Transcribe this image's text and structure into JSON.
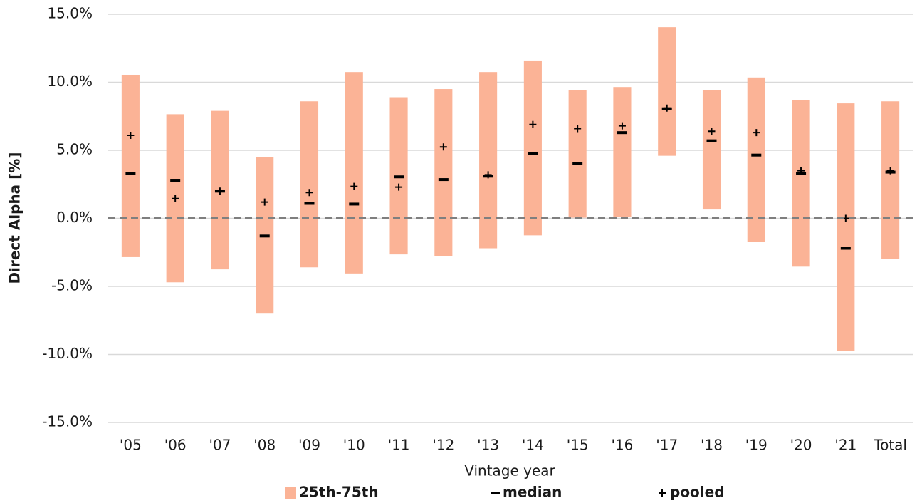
{
  "chart_data": {
    "type": "range_bar",
    "y_label": "Direct Alpha [%]",
    "x_label": "Vintage year",
    "categories": [
      "'05",
      "'06",
      "'07",
      "'08",
      "'09",
      "'10",
      "'11",
      "'12",
      "'13",
      "'14",
      "'15",
      "'16",
      "'17",
      "'18",
      "'19",
      "'20",
      "'21",
      "Total"
    ],
    "series": [
      {
        "name": "25th-75th",
        "color": "#fbb396",
        "low": [
          -2.85,
          -4.7,
          -3.75,
          -7.0,
          -3.6,
          -4.05,
          -2.65,
          -2.75,
          -2.2,
          -1.25,
          0.05,
          0.1,
          4.6,
          0.65,
          -1.75,
          -3.55,
          -9.75,
          -3.0
        ],
        "high": [
          10.55,
          7.65,
          7.9,
          4.5,
          8.6,
          10.75,
          8.9,
          9.5,
          10.75,
          11.6,
          9.45,
          9.65,
          14.05,
          9.4,
          10.35,
          8.7,
          8.45,
          8.6
        ]
      },
      {
        "name": "median",
        "color": "#000000",
        "values": [
          3.3,
          2.8,
          2.0,
          -1.3,
          1.1,
          1.05,
          3.05,
          2.85,
          3.1,
          4.75,
          4.05,
          6.3,
          8.05,
          5.7,
          4.65,
          3.3,
          -2.2,
          3.4
        ]
      },
      {
        "name": "pooled",
        "color": "#000000",
        "values": [
          6.1,
          1.45,
          2.0,
          1.2,
          1.9,
          2.35,
          2.3,
          5.25,
          3.2,
          6.9,
          6.6,
          6.8,
          8.1,
          6.4,
          6.3,
          3.5,
          0.0,
          3.5
        ]
      }
    ],
    "ylim": [
      -15,
      15
    ],
    "yticks": [
      {
        "value": -15,
        "label": "-15.0%"
      },
      {
        "value": -10,
        "label": "-10.0%"
      },
      {
        "value": -5,
        "label": "-5.0%"
      },
      {
        "value": 0,
        "label": "0.0%"
      },
      {
        "value": 5,
        "label": "5.0%"
      },
      {
        "value": 10,
        "label": "10.0%"
      },
      {
        "value": 15,
        "label": "15.0%"
      }
    ],
    "grid": true,
    "legend": "bottom"
  }
}
